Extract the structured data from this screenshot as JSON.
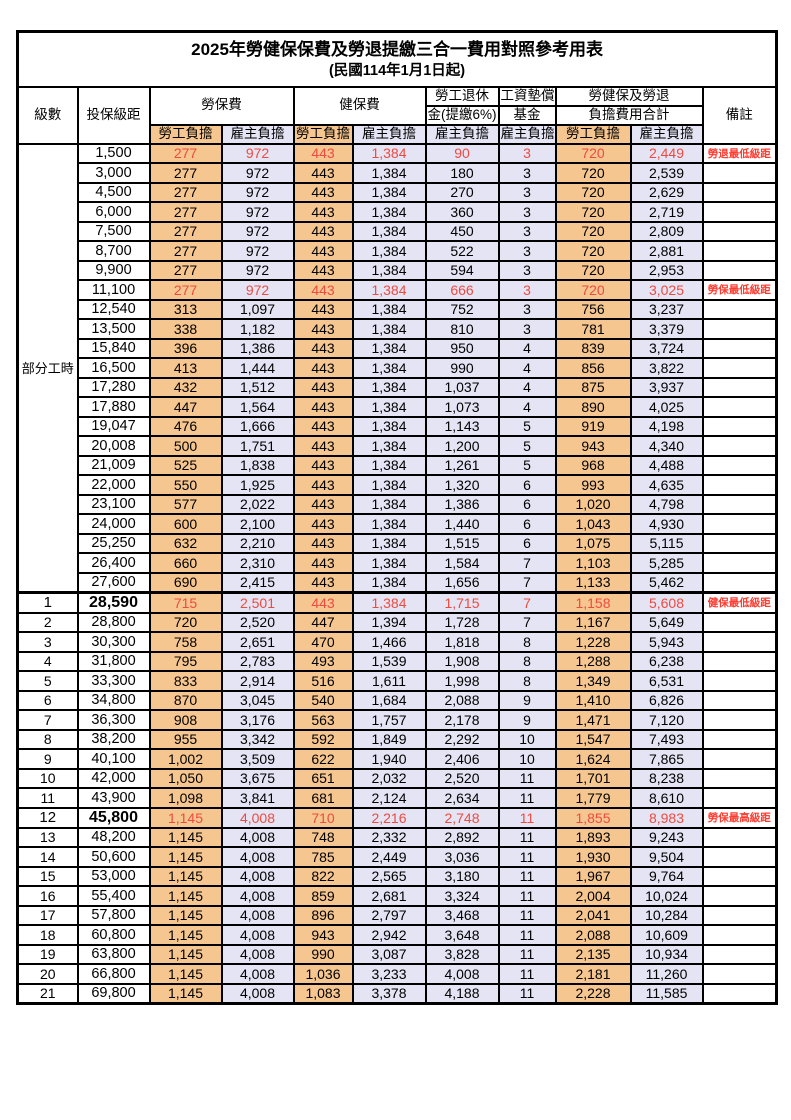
{
  "page": {
    "title": "2025年勞健保保費及勞退提繳三合一費用對照參考用表",
    "subtitle": "(民國114年1月1日起)"
  },
  "header": {
    "level": "級數",
    "bracket": "投保級距",
    "labor_insurance": "勞保費",
    "health_insurance": "健保費",
    "pension_line1": "勞工退休",
    "pension_line2": "金(提繳6%)",
    "wage_fund_line1": "工資墊償",
    "wage_fund_line2": "基金",
    "total_line1": "勞健保及勞退",
    "total_line2": "負擔費用合計",
    "remark": "備註",
    "employee_share": "勞工負擔",
    "employer_share": "雇主負擔"
  },
  "part_time": {
    "label": "部分工時",
    "rowspan": 23
  },
  "colors": {
    "employee_bg": "#F6C690",
    "employer_bg": "#E4E4F4",
    "highlight_red": "#EE4B40",
    "remark_red": "#FF3B30"
  },
  "rows": [
    {
      "level": "",
      "bracket": "1,500",
      "values": [
        "277",
        "972",
        "443",
        "1,384",
        "90",
        "3",
        "720",
        "2,449"
      ],
      "remark": "勞退最低級距",
      "red": true
    },
    {
      "level": "",
      "bracket": "3,000",
      "values": [
        "277",
        "972",
        "443",
        "1,384",
        "180",
        "3",
        "720",
        "2,539"
      ],
      "remark": ""
    },
    {
      "level": "",
      "bracket": "4,500",
      "values": [
        "277",
        "972",
        "443",
        "1,384",
        "270",
        "3",
        "720",
        "2,629"
      ],
      "remark": ""
    },
    {
      "level": "",
      "bracket": "6,000",
      "values": [
        "277",
        "972",
        "443",
        "1,384",
        "360",
        "3",
        "720",
        "2,719"
      ],
      "remark": ""
    },
    {
      "level": "",
      "bracket": "7,500",
      "values": [
        "277",
        "972",
        "443",
        "1,384",
        "450",
        "3",
        "720",
        "2,809"
      ],
      "remark": ""
    },
    {
      "level": "",
      "bracket": "8,700",
      "values": [
        "277",
        "972",
        "443",
        "1,384",
        "522",
        "3",
        "720",
        "2,881"
      ],
      "remark": ""
    },
    {
      "level": "",
      "bracket": "9,900",
      "values": [
        "277",
        "972",
        "443",
        "1,384",
        "594",
        "3",
        "720",
        "2,953"
      ],
      "remark": ""
    },
    {
      "level": "",
      "bracket": "11,100",
      "values": [
        "277",
        "972",
        "443",
        "1,384",
        "666",
        "3",
        "720",
        "3,025"
      ],
      "remark": "勞保最低級距",
      "red": true
    },
    {
      "level": "",
      "bracket": "12,540",
      "values": [
        "313",
        "1,097",
        "443",
        "1,384",
        "752",
        "3",
        "756",
        "3,237"
      ],
      "remark": ""
    },
    {
      "level": "",
      "bracket": "13,500",
      "values": [
        "338",
        "1,182",
        "443",
        "1,384",
        "810",
        "3",
        "781",
        "3,379"
      ],
      "remark": ""
    },
    {
      "level": "",
      "bracket": "15,840",
      "values": [
        "396",
        "1,386",
        "443",
        "1,384",
        "950",
        "4",
        "839",
        "3,724"
      ],
      "remark": ""
    },
    {
      "level": "",
      "bracket": "16,500",
      "values": [
        "413",
        "1,444",
        "443",
        "1,384",
        "990",
        "4",
        "856",
        "3,822"
      ],
      "remark": ""
    },
    {
      "level": "",
      "bracket": "17,280",
      "values": [
        "432",
        "1,512",
        "443",
        "1,384",
        "1,037",
        "4",
        "875",
        "3,937"
      ],
      "remark": ""
    },
    {
      "level": "",
      "bracket": "17,880",
      "values": [
        "447",
        "1,564",
        "443",
        "1,384",
        "1,073",
        "4",
        "890",
        "4,025"
      ],
      "remark": ""
    },
    {
      "level": "",
      "bracket": "19,047",
      "values": [
        "476",
        "1,666",
        "443",
        "1,384",
        "1,143",
        "5",
        "919",
        "4,198"
      ],
      "remark": ""
    },
    {
      "level": "",
      "bracket": "20,008",
      "values": [
        "500",
        "1,751",
        "443",
        "1,384",
        "1,200",
        "5",
        "943",
        "4,340"
      ],
      "remark": ""
    },
    {
      "level": "",
      "bracket": "21,009",
      "values": [
        "525",
        "1,838",
        "443",
        "1,384",
        "1,261",
        "5",
        "968",
        "4,488"
      ],
      "remark": ""
    },
    {
      "level": "",
      "bracket": "22,000",
      "values": [
        "550",
        "1,925",
        "443",
        "1,384",
        "1,320",
        "6",
        "993",
        "4,635"
      ],
      "remark": ""
    },
    {
      "level": "",
      "bracket": "23,100",
      "values": [
        "577",
        "2,022",
        "443",
        "1,384",
        "1,386",
        "6",
        "1,020",
        "4,798"
      ],
      "remark": ""
    },
    {
      "level": "",
      "bracket": "24,000",
      "values": [
        "600",
        "2,100",
        "443",
        "1,384",
        "1,440",
        "6",
        "1,043",
        "4,930"
      ],
      "remark": ""
    },
    {
      "level": "",
      "bracket": "25,250",
      "values": [
        "632",
        "2,210",
        "443",
        "1,384",
        "1,515",
        "6",
        "1,075",
        "5,115"
      ],
      "remark": ""
    },
    {
      "level": "",
      "bracket": "26,400",
      "values": [
        "660",
        "2,310",
        "443",
        "1,384",
        "1,584",
        "7",
        "1,103",
        "5,285"
      ],
      "remark": ""
    },
    {
      "level": "",
      "bracket": "27,600",
      "values": [
        "690",
        "2,415",
        "443",
        "1,384",
        "1,656",
        "7",
        "1,133",
        "5,462"
      ],
      "remark": ""
    },
    {
      "level": "1",
      "bracket": "28,590",
      "values": [
        "715",
        "2,501",
        "443",
        "1,384",
        "1,715",
        "7",
        "1,158",
        "5,608"
      ],
      "remark": "健保最低級距",
      "red": true,
      "bold": true,
      "section_start": true
    },
    {
      "level": "2",
      "bracket": "28,800",
      "values": [
        "720",
        "2,520",
        "447",
        "1,394",
        "1,728",
        "7",
        "1,167",
        "5,649"
      ],
      "remark": ""
    },
    {
      "level": "3",
      "bracket": "30,300",
      "values": [
        "758",
        "2,651",
        "470",
        "1,466",
        "1,818",
        "8",
        "1,228",
        "5,943"
      ],
      "remark": ""
    },
    {
      "level": "4",
      "bracket": "31,800",
      "values": [
        "795",
        "2,783",
        "493",
        "1,539",
        "1,908",
        "8",
        "1,288",
        "6,238"
      ],
      "remark": ""
    },
    {
      "level": "5",
      "bracket": "33,300",
      "values": [
        "833",
        "2,914",
        "516",
        "1,611",
        "1,998",
        "8",
        "1,349",
        "6,531"
      ],
      "remark": ""
    },
    {
      "level": "6",
      "bracket": "34,800",
      "values": [
        "870",
        "3,045",
        "540",
        "1,684",
        "2,088",
        "9",
        "1,410",
        "6,826"
      ],
      "remark": ""
    },
    {
      "level": "7",
      "bracket": "36,300",
      "values": [
        "908",
        "3,176",
        "563",
        "1,757",
        "2,178",
        "9",
        "1,471",
        "7,120"
      ],
      "remark": ""
    },
    {
      "level": "8",
      "bracket": "38,200",
      "values": [
        "955",
        "3,342",
        "592",
        "1,849",
        "2,292",
        "10",
        "1,547",
        "7,493"
      ],
      "remark": ""
    },
    {
      "level": "9",
      "bracket": "40,100",
      "values": [
        "1,002",
        "3,509",
        "622",
        "1,940",
        "2,406",
        "10",
        "1,624",
        "7,865"
      ],
      "remark": ""
    },
    {
      "level": "10",
      "bracket": "42,000",
      "values": [
        "1,050",
        "3,675",
        "651",
        "2,032",
        "2,520",
        "11",
        "1,701",
        "8,238"
      ],
      "remark": ""
    },
    {
      "level": "11",
      "bracket": "43,900",
      "values": [
        "1,098",
        "3,841",
        "681",
        "2,124",
        "2,634",
        "11",
        "1,779",
        "8,610"
      ],
      "remark": ""
    },
    {
      "level": "12",
      "bracket": "45,800",
      "values": [
        "1,145",
        "4,008",
        "710",
        "2,216",
        "2,748",
        "11",
        "1,855",
        "8,983"
      ],
      "remark": "勞保最高級距",
      "red": true,
      "bold": true
    },
    {
      "level": "13",
      "bracket": "48,200",
      "values": [
        "1,145",
        "4,008",
        "748",
        "2,332",
        "2,892",
        "11",
        "1,893",
        "9,243"
      ],
      "remark": ""
    },
    {
      "level": "14",
      "bracket": "50,600",
      "values": [
        "1,145",
        "4,008",
        "785",
        "2,449",
        "3,036",
        "11",
        "1,930",
        "9,504"
      ],
      "remark": ""
    },
    {
      "level": "15",
      "bracket": "53,000",
      "values": [
        "1,145",
        "4,008",
        "822",
        "2,565",
        "3,180",
        "11",
        "1,967",
        "9,764"
      ],
      "remark": ""
    },
    {
      "level": "16",
      "bracket": "55,400",
      "values": [
        "1,145",
        "4,008",
        "859",
        "2,681",
        "3,324",
        "11",
        "2,004",
        "10,024"
      ],
      "remark": ""
    },
    {
      "level": "17",
      "bracket": "57,800",
      "values": [
        "1,145",
        "4,008",
        "896",
        "2,797",
        "3,468",
        "11",
        "2,041",
        "10,284"
      ],
      "remark": ""
    },
    {
      "level": "18",
      "bracket": "60,800",
      "values": [
        "1,145",
        "4,008",
        "943",
        "2,942",
        "3,648",
        "11",
        "2,088",
        "10,609"
      ],
      "remark": ""
    },
    {
      "level": "19",
      "bracket": "63,800",
      "values": [
        "1,145",
        "4,008",
        "990",
        "3,087",
        "3,828",
        "11",
        "2,135",
        "10,934"
      ],
      "remark": ""
    },
    {
      "level": "20",
      "bracket": "66,800",
      "values": [
        "1,145",
        "4,008",
        "1,036",
        "3,233",
        "4,008",
        "11",
        "2,181",
        "11,260"
      ],
      "remark": ""
    },
    {
      "level": "21",
      "bracket": "69,800",
      "values": [
        "1,145",
        "4,008",
        "1,083",
        "3,378",
        "4,188",
        "11",
        "2,228",
        "11,585"
      ],
      "remark": ""
    }
  ]
}
